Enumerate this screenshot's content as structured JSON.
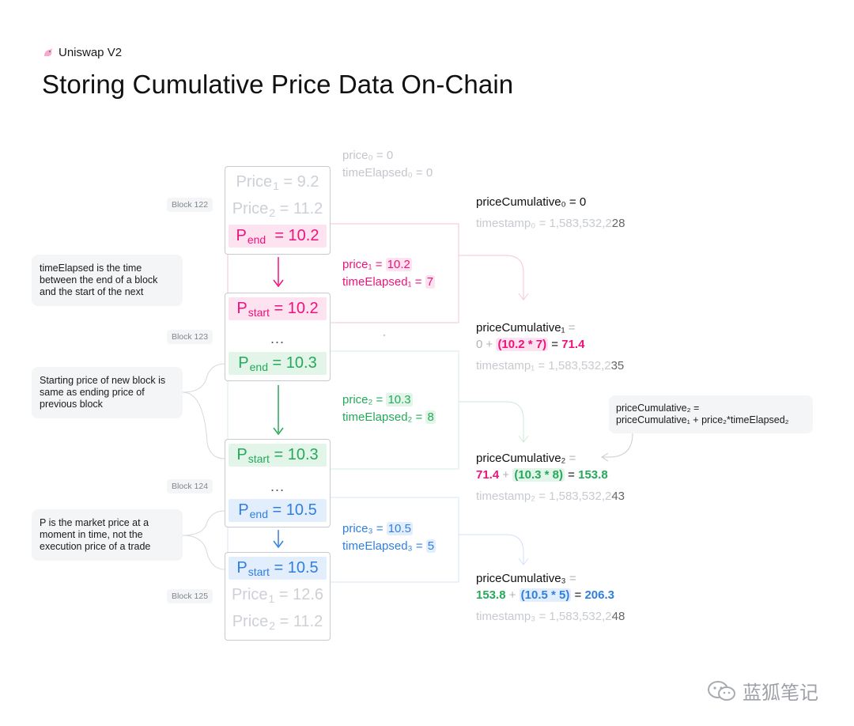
{
  "brand": {
    "icon": "unicorn-icon",
    "label": "Uniswap V2"
  },
  "title": "Storing Cumulative Price Data On-Chain",
  "colors": {
    "pink": "#f0127c",
    "green": "#25a95a",
    "blue": "#2f7fe0",
    "grey": "#ccd0d7"
  },
  "blocks": {
    "b122": {
      "label": "Block 122",
      "row1": {
        "text": "Price",
        "sub": "1",
        "value": " = 9.2"
      },
      "row2": {
        "text": "Price",
        "sub": "2",
        "value": " = 11.2"
      },
      "row3": {
        "text": "P",
        "sub": "end",
        "value": "  = 10.2"
      }
    },
    "b123": {
      "label": "Block 123",
      "row1": {
        "text": "P",
        "sub": "start",
        "value": " = 10.2"
      },
      "dots": "...",
      "row3": {
        "text": "P",
        "sub": "end",
        "value": " = 10.3"
      }
    },
    "b124": {
      "label": "Block 124",
      "row1": {
        "text": "P",
        "sub": "start",
        "value": " = 10.3"
      },
      "dots": "...",
      "row3": {
        "text": "P",
        "sub": "end",
        "value": " = 10.5"
      }
    },
    "b125": {
      "label": "Block 125",
      "row1": {
        "text": "P",
        "sub": "start",
        "value": " = 10.5"
      },
      "row2": {
        "text": "Price",
        "sub": "1",
        "value": " = 12.6"
      },
      "row3": {
        "text": "Price",
        "sub": "2",
        "value": " = 11.2"
      }
    }
  },
  "notes": {
    "n1": "timeElapsed is the time between the end of a block and the start of the next",
    "n2": "Starting price of new block is same as ending price of previous block",
    "n3": "P is the market price at a moment in time, not the execution price of a trade",
    "formula_line1": "priceCumulative₂ =",
    "formula_line2": "priceCumulative₁ + price₂*timeElapsed₂"
  },
  "mid": {
    "m0": {
      "price": "price₀ = 0",
      "elapsed": "timeElapsed₀ = 0"
    },
    "m1": {
      "price_label": "price₁ = ",
      "price_val": "10.2",
      "elapsed_label": "timeElapsed₁ = ",
      "elapsed_val": "7"
    },
    "m2": {
      "price_label": "price₂ = ",
      "price_val": "10.3",
      "elapsed_label": "timeElapsed₂ = ",
      "elapsed_val": "8"
    },
    "m3": {
      "price_label": "price₃ = ",
      "price_val": "10.5",
      "elapsed_label": "timeElapsed₃ = ",
      "elapsed_val": "5"
    }
  },
  "cumulative": {
    "c0": {
      "title": "priceCumulative₀ = 0",
      "ts_prefix": "timestamp₀ = 1,583,532,2",
      "ts_last": "28"
    },
    "c1": {
      "title": "priceCumulative₁ ",
      "eq": "=",
      "prev": "0 + ",
      "expr": "(10.2 * 7)",
      "equals": " = ",
      "result": "71.4",
      "ts_prefix": "timestamp₁ = 1,583,532,2",
      "ts_last": "35"
    },
    "c2": {
      "title": "priceCumulative₂ ",
      "eq": "=",
      "prev": "71.4",
      "plus": " + ",
      "expr": "(10.3 * 8)",
      "equals": " = ",
      "result": "153.8",
      "ts_prefix": "timestamp₂ = 1,583,532,2",
      "ts_last": "43"
    },
    "c3": {
      "title": "priceCumulative₃ ",
      "eq": "=",
      "prev": "153.8",
      "plus": " + ",
      "expr": "(10.5 * 5)",
      "equals": " = ",
      "result": "206.3",
      "ts_prefix": "timestamp₃ = 1,583,532,2",
      "ts_last": "48"
    }
  },
  "watermark": {
    "icon": "wechat-icon",
    "text": "蓝狐笔记"
  }
}
